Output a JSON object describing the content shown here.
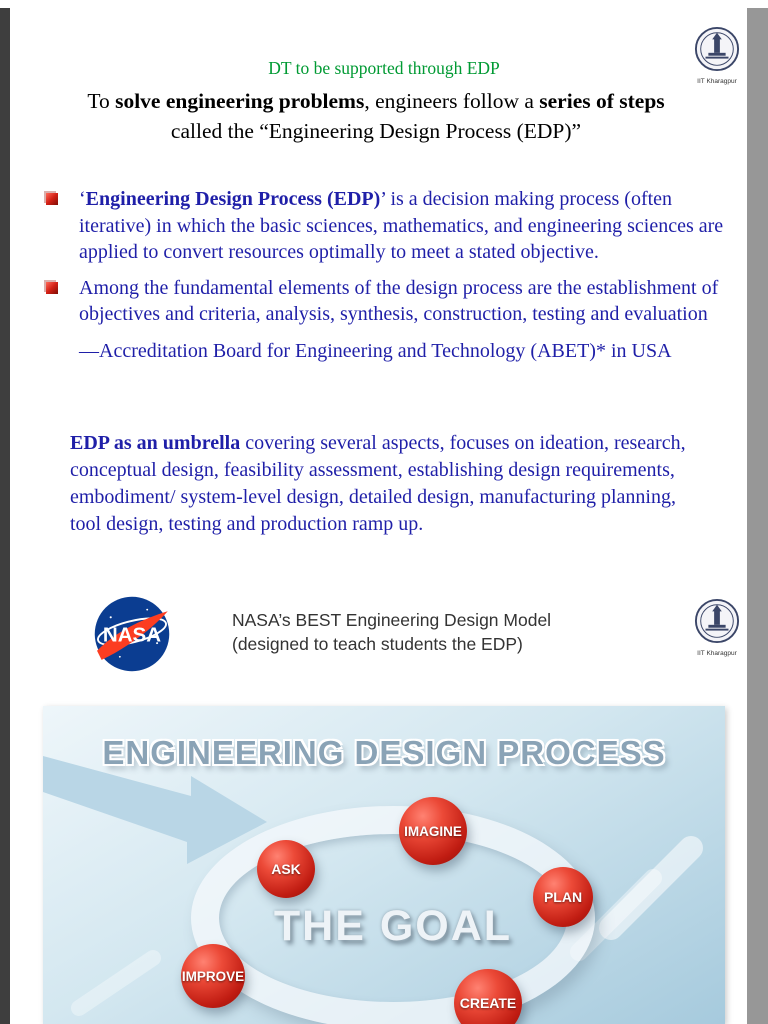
{
  "header": {
    "green_title": "DT to be supported through EDP",
    "subtitle_line1": [
      {
        "t": "To "
      },
      {
        "t": "solve engineering problems",
        "b": true
      },
      {
        "t": ", engineers follow a "
      },
      {
        "t": "series of steps",
        "b": true
      }
    ],
    "subtitle_line2": "called the “Engineering Design Process (EDP)”"
  },
  "iit_logo": {
    "caption": "IIT Kharagpur"
  },
  "bullet1": [
    {
      "t": "‘"
    },
    {
      "t": "Engineering Design Process (EDP)",
      "b": true
    },
    {
      "t": "’ is a decision making process (often iterative) in which the basic sciences, mathematics, and engineering sciences are applied to convert resources optimally to meet a stated objective."
    }
  ],
  "bullet2": [
    {
      "t": " Among the fundamental elements of the design process are the establishment of objectives and criteria,  analysis,  synthesis, construction, testing and evaluation"
    }
  ],
  "abet_line": "—Accreditation Board for Engineering and Technology (ABET)* in USA",
  "umbrella_paragraph": [
    {
      "t": " "
    },
    {
      "t": "EDP as an umbrella",
      "b": true
    },
    {
      "t": " covering several aspects, focuses on ideation, research, conceptual design, feasibility assessment, establishing design requirements, embodiment/ system-level design, detailed design, manufacturing planning, tool design, testing and production ramp up."
    }
  ],
  "nasa_section": {
    "logo_text": "NASA",
    "caption_line1": "NASA’s BEST Engineering Design Model",
    "caption_line2": "(designed to teach students the EDP)"
  },
  "edp_graphic": {
    "title": "ENGINEERING DESIGN PROCESS",
    "center_label": "THE GOAL",
    "nodes": [
      {
        "label": "ASK"
      },
      {
        "label": "IMAGINE"
      },
      {
        "label": "PLAN"
      },
      {
        "label": "IMPROVE"
      },
      {
        "label": "CREATE"
      }
    ]
  },
  "colors": {
    "title_green": "#009A33",
    "body_blue": "#1f1fa8",
    "bullet_red": "#d21f14",
    "node_red": "#c01c12",
    "nasa_blue": "#0b3d91",
    "nasa_red": "#fc3d21",
    "graphic_bg": "#c9e2ee",
    "graphic_title": "#8aa3b6"
  }
}
